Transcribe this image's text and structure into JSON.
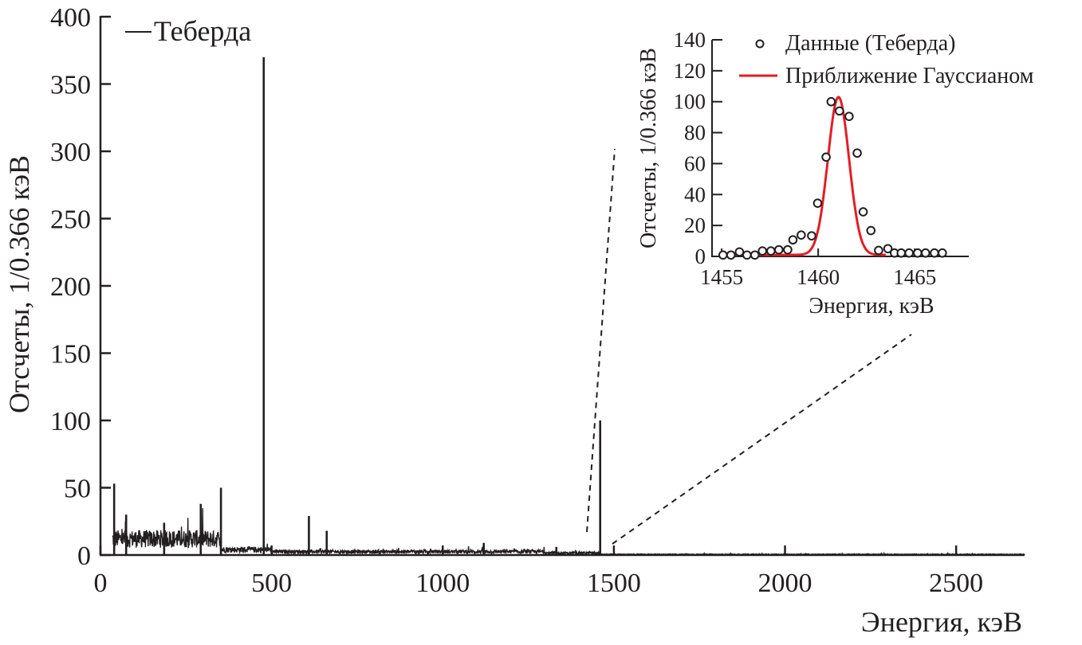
{
  "chart_data": [
    {
      "type": "line",
      "title": "",
      "xlabel": "Энергия, кэВ",
      "ylabel": "Отсчеты, 1/0.366 кэВ",
      "xlim": [
        0,
        2700
      ],
      "ylim": [
        0,
        400
      ],
      "xticks": [
        0,
        500,
        1000,
        1500,
        2000,
        2500
      ],
      "yticks": [
        0,
        50,
        100,
        150,
        200,
        250,
        300,
        350,
        400
      ],
      "legend": {
        "placement": "top-left",
        "entries": [
          "Теберда"
        ]
      },
      "series": [
        {
          "name": "Теберда",
          "color": "#231f20",
          "continuum": [
            {
              "from": 35,
              "to": 350,
              "level": 12
            },
            {
              "from": 350,
              "to": 500,
              "level": 4
            },
            {
              "from": 500,
              "to": 1300,
              "level": 2.5
            },
            {
              "from": 1300,
              "to": 1460,
              "level": 1.5
            },
            {
              "from": 1460,
              "to": 2700,
              "level": 0.5
            }
          ],
          "peaks": [
            {
              "x": 40,
              "y": 53
            },
            {
              "x": 75,
              "y": 30
            },
            {
              "x": 186,
              "y": 24
            },
            {
              "x": 293,
              "y": 38
            },
            {
              "x": 352,
              "y": 50
            },
            {
              "x": 477,
              "y": 370
            },
            {
              "x": 609,
              "y": 29
            },
            {
              "x": 661,
              "y": 18
            },
            {
              "x": 1120,
              "y": 9
            },
            {
              "x": 1332,
              "y": 6
            },
            {
              "x": 1460,
              "y": 100
            }
          ]
        }
      ]
    },
    {
      "type": "scatter",
      "title": "",
      "xlabel": "Энергия, кэВ",
      "ylabel": "Отсчеты, 1/0.366 кэВ",
      "xlim": [
        1454.5,
        1467.8
      ],
      "ylim": [
        0,
        140
      ],
      "xticks": [
        1455,
        1460,
        1465
      ],
      "yticks": [
        0,
        20,
        40,
        60,
        80,
        100,
        120,
        140
      ],
      "legend": {
        "placement": "top-right",
        "entries": [
          "Данные (Теберда)",
          "Приближение Гауссианом"
        ]
      },
      "series": [
        {
          "name": "Данные (Теберда)",
          "marker": "open-circle",
          "x": [
            1455.07,
            1455.48,
            1455.92,
            1456.31,
            1456.72,
            1457.11,
            1457.55,
            1457.96,
            1458.42,
            1458.69,
            1459.12,
            1459.66,
            1459.97,
            1460.41,
            1460.67,
            1461.1,
            1461.6,
            1462.02,
            1462.33,
            1462.73,
            1463.13,
            1463.61,
            1463.95,
            1464.3,
            1464.71,
            1465.15,
            1465.56,
            1466.02,
            1466.43
          ],
          "y": [
            0.9,
            0.9,
            2.9,
            0.9,
            0.9,
            3.5,
            3.5,
            4.3,
            4.3,
            10.7,
            13.8,
            13.3,
            34.4,
            64.2,
            100,
            94,
            90.5,
            66.8,
            28.8,
            16.7,
            3.9,
            5.0,
            2.2,
            2.2,
            2.2,
            2.2,
            2.2,
            2.2,
            2.2
          ]
        },
        {
          "name": "Приближение Гауссианом",
          "color": "#e31e24",
          "gaussian": {
            "amplitude": 102,
            "center": 1461.05,
            "sigma": 0.55,
            "baseline": 1
          },
          "x_range": [
            1455,
            1463.5
          ]
        }
      ]
    }
  ]
}
